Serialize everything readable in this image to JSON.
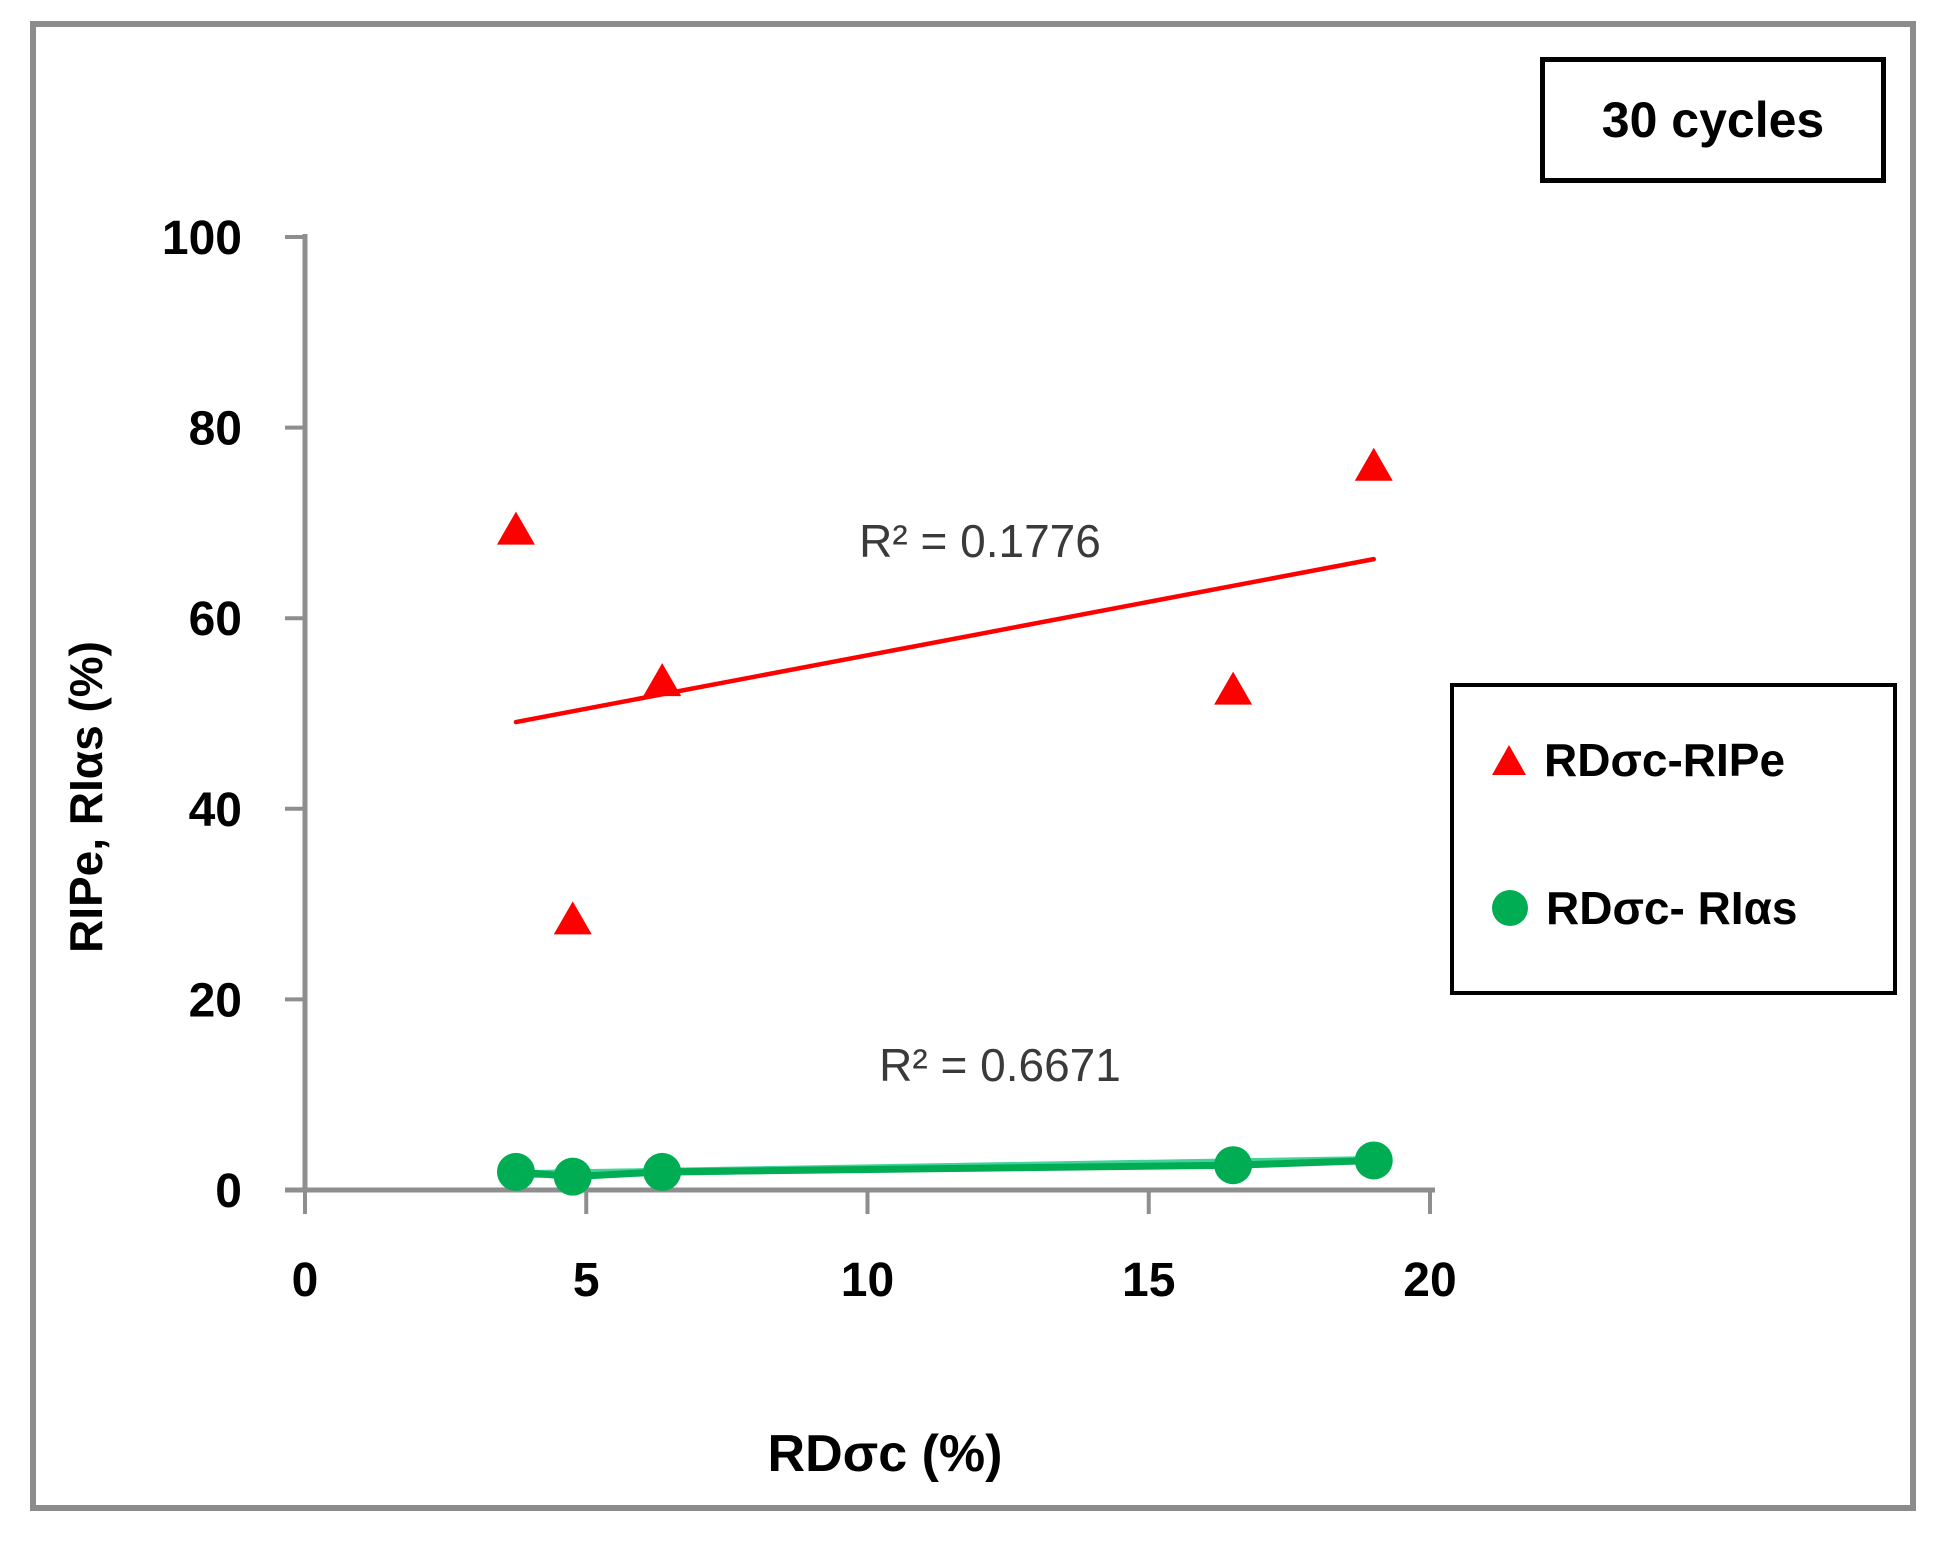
{
  "frame": {
    "title_box_label": "30 cycles"
  },
  "chart_data": {
    "type": "scatter",
    "title": "30 cycles",
    "xlabel": "RDσc (%)",
    "ylabel": "RIPe, RIαs (%)",
    "xlim": [
      0,
      20
    ],
    "ylim": [
      0,
      100
    ],
    "xticks": [
      0,
      5,
      10,
      15,
      20
    ],
    "yticks": [
      0,
      20,
      40,
      60,
      80,
      100
    ],
    "grid": false,
    "legend_position": "middle-right",
    "axis_color": "#8e8e8e",
    "x": [
      3.75,
      4.76,
      6.35,
      16.5,
      19.0
    ],
    "series": [
      {
        "name": "RDσc-RIPe",
        "marker": "triangle",
        "color": "#ff0000",
        "values": [
          69.3,
          28.4,
          53.4,
          52.5,
          76.0
        ],
        "connected": false,
        "r_squared": 0.1776,
        "trendline": {
          "x1": 3.75,
          "y1": 49.1,
          "x2": 19.0,
          "y2": 66.2,
          "color": "#ff0000",
          "width": 4.5
        }
      },
      {
        "name": "RDσc- RIαs",
        "marker": "circle",
        "color": "#00ad53",
        "values": [
          1.9,
          1.4,
          1.9,
          2.6,
          3.1
        ],
        "connected": true,
        "line_width": 7,
        "r_squared": 0.6671,
        "trendline": {
          "x1": 3.75,
          "y1": 1.65,
          "x2": 19.0,
          "y2": 3.15,
          "color": "#45d19b",
          "width": 8
        }
      }
    ],
    "annotations": [
      {
        "text": "R² = 0.1776",
        "series": "RDσc-RIPe",
        "x": 12.0,
        "y": 67.9
      },
      {
        "text": "R² = 0.6671",
        "series": "RDσc- RIαs",
        "x": 12.3,
        "y": 12.8
      }
    ]
  },
  "legend": {
    "items": [
      {
        "label": "RDσc-RIPe",
        "marker": "triangle",
        "color": "#ff0000"
      },
      {
        "label": "RDσc- RIαs",
        "marker": "circle",
        "color": "#00ad53"
      }
    ]
  }
}
